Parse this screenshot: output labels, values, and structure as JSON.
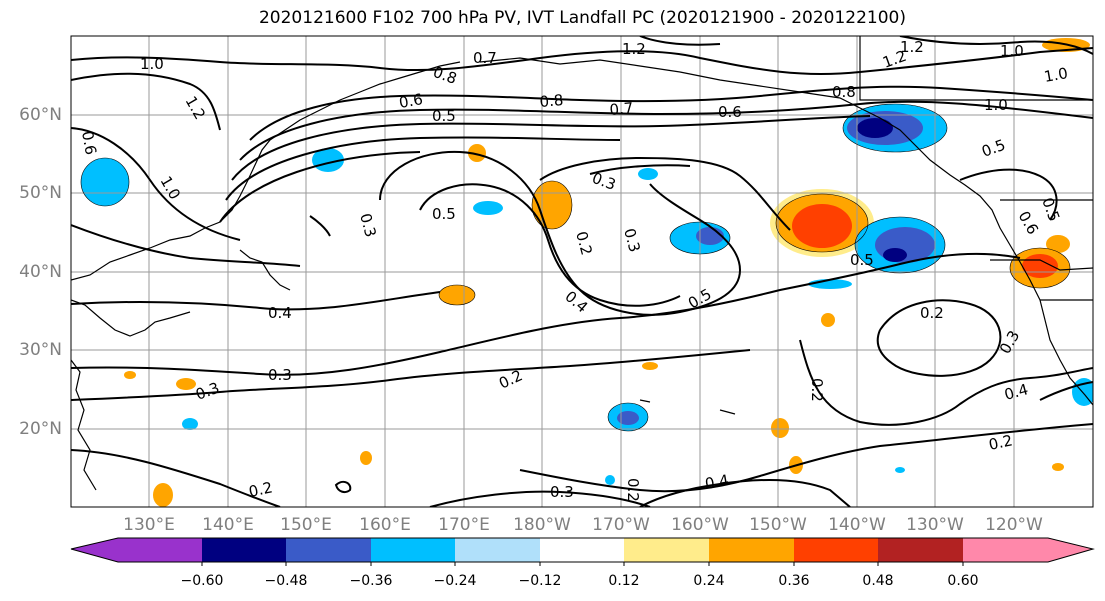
{
  "title": "2020121600 F102 700 hPa PV, IVT Landfall PC (2020121900 - 2020122100)",
  "map": {
    "lat_labels": [
      "60°N",
      "50°N",
      "40°N",
      "30°N",
      "20°N"
    ],
    "lon_labels": [
      "130°E",
      "140°E",
      "150°E",
      "160°E",
      "170°E",
      "180°W",
      "170°W",
      "160°W",
      "150°W",
      "140°W",
      "130°W",
      "120°W"
    ],
    "gridlines": true,
    "contour_labels": [
      "1.0",
      "0.7",
      "1.2",
      "1.2",
      "1.0",
      "0.8",
      "1.2",
      "0.5",
      "0.6",
      "0.8",
      "1.0",
      "0.5",
      "0.6",
      "0.5",
      "0.3",
      "0.5",
      "0.3",
      "0.2",
      "0.3",
      "0.4",
      "0.5",
      "0.4",
      "0.3",
      "0.3",
      "0.2",
      "0.2",
      "0.3",
      "0.4",
      "0.2",
      "0.2",
      "0.4",
      "0.3",
      "0.2",
      "0.2",
      "1.0",
      "0.6",
      "1.2",
      "0.8",
      "0.7",
      "0.6",
      "1.0",
      "0.5"
    ]
  },
  "colorbar": {
    "ticks": [
      "−0.60",
      "−0.48",
      "−0.36",
      "−0.24",
      "−0.12",
      "0.12",
      "0.24",
      "0.36",
      "0.48",
      "0.60"
    ],
    "colors": [
      "#9932cc",
      "#000080",
      "#3a5bc8",
      "#00bfff",
      "#b0e0fa",
      "#ffffff",
      "#ffec8b",
      "#ffa500",
      "#ff4000",
      "#b22222",
      "#ff88aa"
    ]
  }
}
